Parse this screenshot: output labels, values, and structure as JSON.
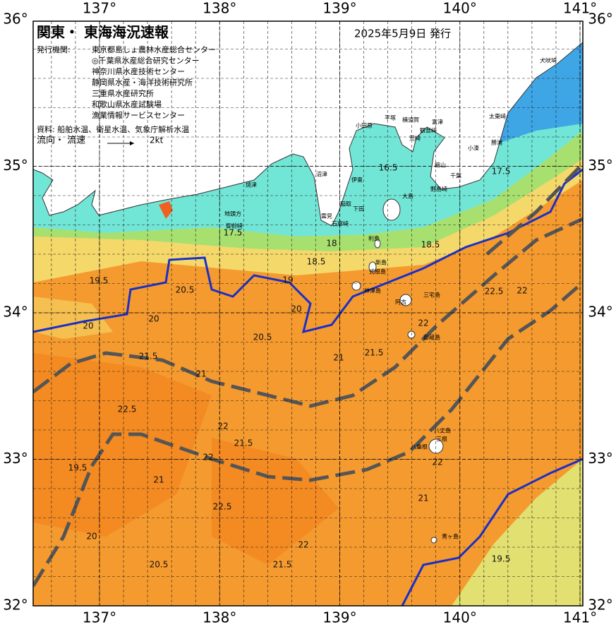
{
  "header": {
    "title": "関東・ 東海海況速報",
    "date": "2025年5月9日 発行",
    "issuer_label": "発行機関:",
    "agencies": [
      "東京都島しょ農林水産総合センター",
      "◎千葉県水産総合研究センター",
      "神奈川県水産技術センター",
      "静岡県水産・海洋技術研究所",
      "三重県水産研究所",
      "和歌山県水産試験場",
      "漁業情報サービスセンター"
    ],
    "sources": "資料: 船舶水温、衛星水温、気象庁解析水温",
    "legend_label": "流向・ 流速",
    "legend_speed": "2kt"
  },
  "map": {
    "lon_ticks": [
      {
        "value": 137,
        "label": "137°"
      },
      {
        "value": 138,
        "label": "138°"
      },
      {
        "value": 139,
        "label": "139°"
      },
      {
        "value": 140,
        "label": "140°"
      },
      {
        "value": 141,
        "label": "141°"
      }
    ],
    "lat_ticks": [
      {
        "value": 36,
        "label": "36°"
      },
      {
        "value": 35,
        "label": "35°"
      },
      {
        "value": 34,
        "label": "34°"
      },
      {
        "value": 33,
        "label": "33°"
      },
      {
        "value": 32,
        "label": "32°"
      }
    ],
    "places": [
      "犬吠埼",
      "太東崎",
      "勝浦",
      "小湊",
      "富津",
      "千葉",
      "館山",
      "野島崎",
      "横須賀",
      "平塚",
      "観音崎",
      "荒崎",
      "小田原",
      "焼津",
      "沼津",
      "伊東",
      "稲取",
      "下田",
      "石廊崎",
      "雲見",
      "地頭方",
      "御前崎",
      "大島",
      "利島",
      "新島",
      "式根島",
      "神津島",
      "三宅島",
      "阿古",
      "御蔵島",
      "八丈島",
      "三根",
      "八重根",
      "青ヶ島"
    ],
    "contour_labels": [
      "19.5",
      "20",
      "20.5",
      "20",
      "17.5",
      "18",
      "18.5",
      "19",
      "20",
      "20.5",
      "21",
      "21.5",
      "22",
      "22.5",
      "22",
      "21.5",
      "22.5",
      "21",
      "22",
      "21.5",
      "22",
      "20.5",
      "21",
      "19.5",
      "20",
      "21.5",
      "22",
      "22.5",
      "21",
      "22",
      "18.5",
      "19.5",
      "17.5",
      "16.5"
    ]
  }
}
